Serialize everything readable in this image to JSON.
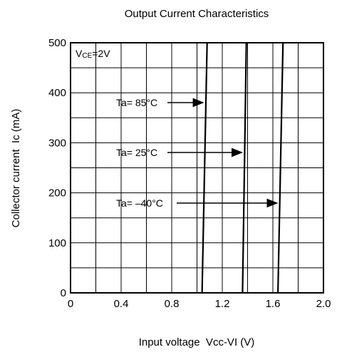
{
  "chart_data": {
    "type": "line",
    "title": "Output Current Characteristics",
    "xlabel": "Input voltage  Vcc-VI (V)",
    "ylabel": "Collector current  Ic (mA)",
    "xlim": [
      0,
      2.0
    ],
    "ylim": [
      0,
      500
    ],
    "x_ticks": [
      "0",
      "0.4",
      "0.8",
      "1.2",
      "1.6",
      "2.0"
    ],
    "y_ticks": [
      "0",
      "100",
      "200",
      "300",
      "400",
      "500"
    ],
    "grid": true,
    "condition": "VCE=2V",
    "series": [
      {
        "name": "Ta= 85°C",
        "x": [
          1.04,
          1.08
        ],
        "y": [
          0,
          500
        ]
      },
      {
        "name": "Ta= 25°C",
        "x": [
          1.36,
          1.39
        ],
        "y": [
          0,
          500
        ]
      },
      {
        "name": "Ta= –40°C",
        "x": [
          1.64,
          1.68
        ],
        "y": [
          0,
          500
        ]
      }
    ]
  }
}
